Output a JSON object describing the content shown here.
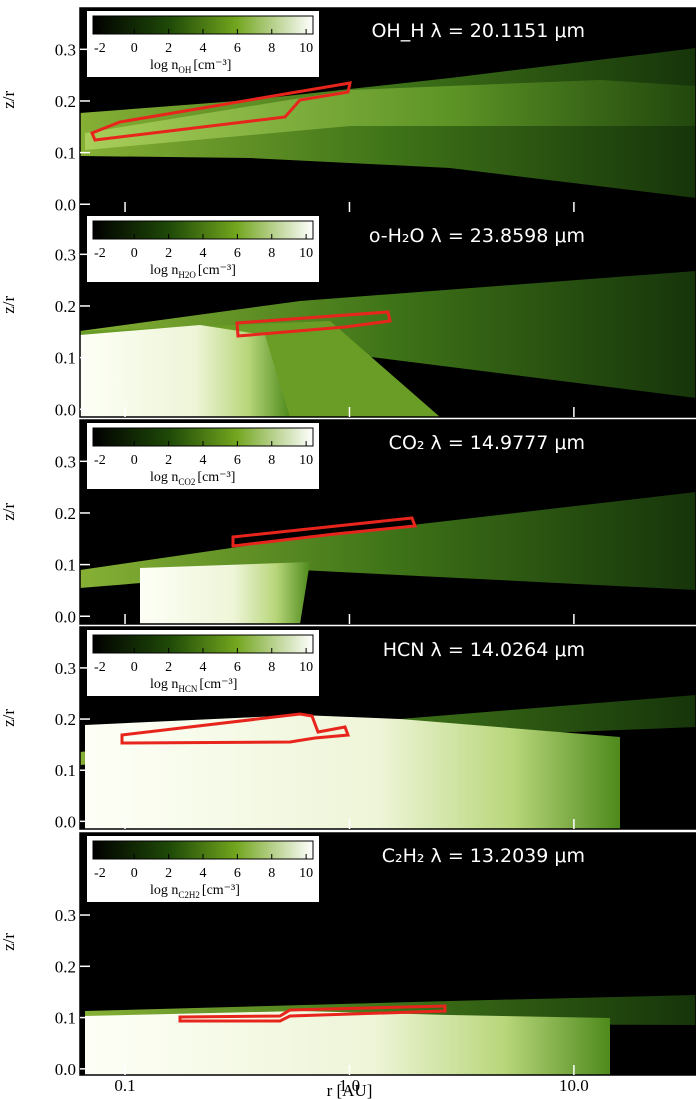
{
  "chart_data": {
    "type": "heatmap-panels",
    "xlabel": "r [AU]",
    "xscale": "log",
    "xlim": [
      0.063,
      35
    ],
    "xticks": [
      0.1,
      {
        "value": 1,
        "label": "1.0"
      },
      {
        "value": 10,
        "label": "10.0"
      }
    ],
    "panels": [
      {
        "title": "OH_H λ = 20.1151 μm",
        "ylabel": "z/r",
        "ylim": [
          -0.015,
          0.38
        ],
        "yticks": [
          {
            "value": 0,
            "label": "0.0"
          },
          0.1,
          0.2,
          0.3
        ],
        "colorbar_label": "log n",
        "colorbar_species": "OH",
        "colorbar_unit": "[cm⁻³]",
        "clim": [
          -2.4,
          10.4
        ],
        "cticks": [
          -2,
          0,
          2,
          4,
          6,
          8,
          10
        ]
      },
      {
        "title": "o-H₂O  λ = 23.8598 μm",
        "ylabel": "z/r",
        "ylim": [
          -0.015,
          0.38
        ],
        "yticks": [
          {
            "value": 0,
            "label": "0.0"
          },
          0.1,
          0.2,
          0.3
        ],
        "colorbar_label": "log n",
        "colorbar_species": "H2O",
        "colorbar_unit": "[cm⁻³]",
        "clim": [
          -2.4,
          10.4
        ],
        "cticks": [
          -2,
          0,
          2,
          4,
          6,
          8,
          10
        ]
      },
      {
        "title": "CO₂ λ = 14.9777 μm",
        "ylabel": "z/r",
        "ylim": [
          -0.015,
          0.38
        ],
        "yticks": [
          {
            "value": 0,
            "label": "0.0"
          },
          0.1,
          0.2,
          0.3
        ],
        "colorbar_label": "log n",
        "colorbar_species": "CO2",
        "colorbar_unit": "[cm⁻³]",
        "clim": [
          -2.4,
          10.4
        ],
        "cticks": [
          -2,
          0,
          2,
          4,
          6,
          8,
          10
        ]
      },
      {
        "title": "HCN λ = 14.0264 μm",
        "ylabel": "z/r",
        "ylim": [
          -0.015,
          0.38
        ],
        "yticks": [
          {
            "value": 0,
            "label": "0.0"
          },
          0.1,
          0.2,
          0.3
        ],
        "colorbar_label": "log n",
        "colorbar_species": "HCN",
        "colorbar_unit": "[cm⁻³]",
        "clim": [
          -2.4,
          10.4
        ],
        "cticks": [
          -2,
          0,
          2,
          4,
          6,
          8,
          10
        ]
      },
      {
        "title": "C₂H₂ λ = 13.2039 μm",
        "ylabel": "z/r",
        "ylim": [
          -0.012,
          0.46
        ],
        "yticks": [
          {
            "value": 0,
            "label": "0.0"
          },
          0.1,
          0.2,
          0.3
        ],
        "colorbar_label": "log n",
        "colorbar_species": "C2H2",
        "colorbar_unit": "[cm⁻³]",
        "clim": [
          -2.4,
          10.4
        ],
        "cticks": [
          -2,
          0,
          2,
          4,
          6,
          8,
          10
        ]
      }
    ]
  }
}
